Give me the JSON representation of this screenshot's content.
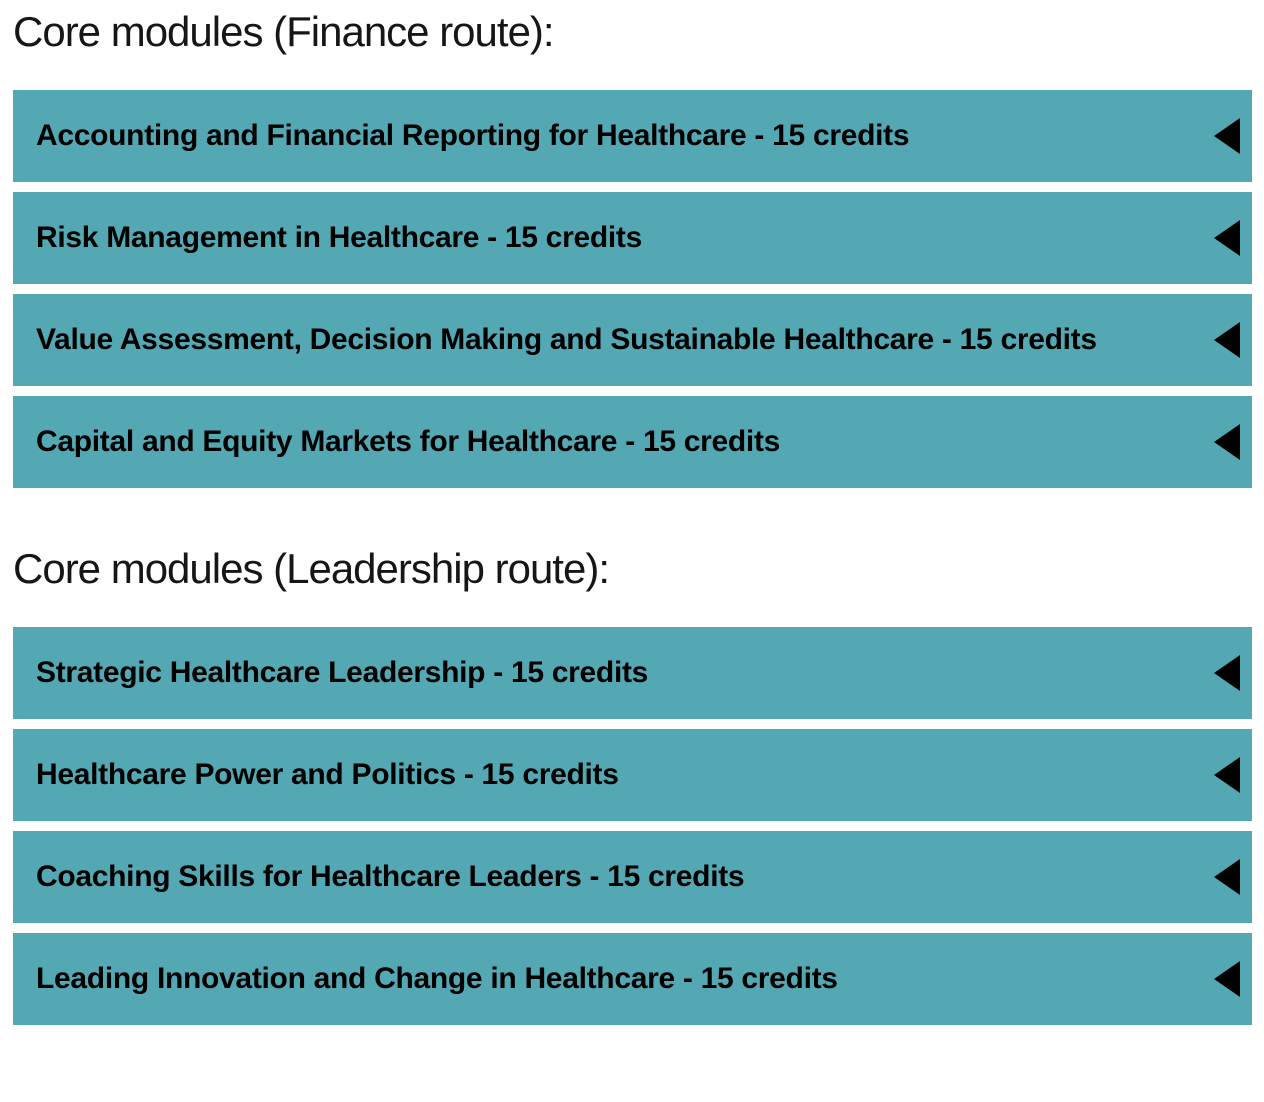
{
  "colors": {
    "accent": "#54a8b3",
    "bar_text": "#000000",
    "heading_text": "#161616",
    "background": "#ffffff"
  },
  "sections": [
    {
      "heading": "Core modules (Finance route):",
      "items": [
        {
          "title": "Accounting and Financial Reporting for Healthcare - 15 credits",
          "icon": "triangle-left-collapse-icon",
          "state": "collapsed"
        },
        {
          "title": "Risk Management in Healthcare - 15 credits",
          "icon": "triangle-left-collapse-icon",
          "state": "collapsed"
        },
        {
          "title": "Value Assessment, Decision Making and Sustainable Healthcare - 15 credits",
          "icon": "triangle-left-collapse-icon",
          "state": "collapsed"
        },
        {
          "title": "Capital and Equity Markets for Healthcare - 15 credits",
          "icon": "triangle-left-collapse-icon",
          "state": "collapsed"
        }
      ]
    },
    {
      "heading": "Core modules (Leadership route):",
      "items": [
        {
          "title": "Strategic Healthcare Leadership - 15 credits",
          "icon": "triangle-left-collapse-icon",
          "state": "collapsed"
        },
        {
          "title": "Healthcare Power and Politics - 15 credits",
          "icon": "triangle-left-collapse-icon",
          "state": "collapsed"
        },
        {
          "title": "Coaching Skills for Healthcare Leaders - 15 credits",
          "icon": "triangle-left-collapse-icon",
          "state": "collapsed"
        },
        {
          "title": "Leading Innovation and Change in Healthcare - 15 credits",
          "icon": "triangle-left-collapse-icon",
          "state": "collapsed"
        }
      ]
    }
  ]
}
